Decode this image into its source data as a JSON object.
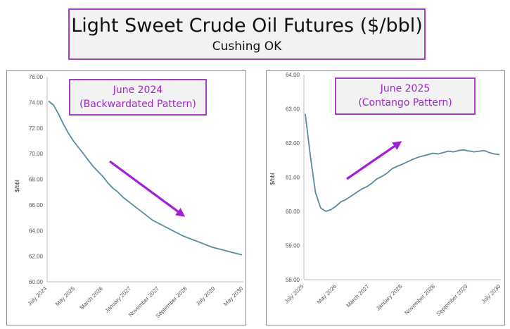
{
  "header": {
    "title": "Light Sweet Crude Oil Futures ($/bbl)",
    "subtitle": "Cushing OK"
  },
  "colors": {
    "line": "#5b8aa0",
    "arrow": "#a21fd6",
    "frame": "#a43fc0"
  },
  "chart_data": [
    {
      "type": "line",
      "annotation": [
        "June 2024",
        "(Backwardated Pattern)"
      ],
      "ylabel": "$/bbl",
      "ylim": [
        60,
        76
      ],
      "yticks": [
        "76.00",
        "74.00",
        "72.00",
        "70.00",
        "68.00",
        "66.00",
        "64.00",
        "62.00",
        "60.00"
      ],
      "xticks": [
        "July 2024",
        "May 2025",
        "March 2026",
        "January 2027",
        "November 2027",
        "September 2028",
        "July 2029",
        "May 2030"
      ],
      "trend_arrow": "down",
      "series": [
        {
          "values": [
            74.1,
            73.8,
            73.1,
            72.3,
            71.6,
            71.0,
            70.5,
            70.0,
            69.5,
            69.0,
            68.6,
            68.2,
            67.7,
            67.3,
            67.0,
            66.6,
            66.3,
            66.0,
            65.7,
            65.4,
            65.1,
            64.8,
            64.6,
            64.4,
            64.2,
            64.0,
            63.8,
            63.6,
            63.45,
            63.3,
            63.15,
            63.0,
            62.85,
            62.7,
            62.6,
            62.5,
            62.4,
            62.3,
            62.2,
            62.1
          ]
        }
      ]
    },
    {
      "type": "line",
      "annotation": [
        "June 2025",
        "(Contango Pattern)"
      ],
      "ylabel": "$/bbl",
      "ylim": [
        58,
        64
      ],
      "yticks": [
        "64.00",
        "63.00",
        "62.00",
        "61.00",
        "60.00",
        "59.00",
        "58.00"
      ],
      "xticks": [
        "July 2025",
        "May 2026",
        "March 2027",
        "January 2028",
        "November 2028",
        "September 2029",
        "July 2030"
      ],
      "trend_arrow": "up",
      "series": [
        {
          "values": [
            62.85,
            61.6,
            60.55,
            60.1,
            60.0,
            60.05,
            60.15,
            60.28,
            60.35,
            60.45,
            60.55,
            60.65,
            60.72,
            60.82,
            60.95,
            61.02,
            61.12,
            61.25,
            61.32,
            61.38,
            61.45,
            61.52,
            61.58,
            61.62,
            61.66,
            61.7,
            61.68,
            61.72,
            61.76,
            61.74,
            61.78,
            61.8,
            61.77,
            61.74,
            61.76,
            61.78,
            61.72,
            61.68,
            61.66
          ]
        }
      ]
    }
  ]
}
